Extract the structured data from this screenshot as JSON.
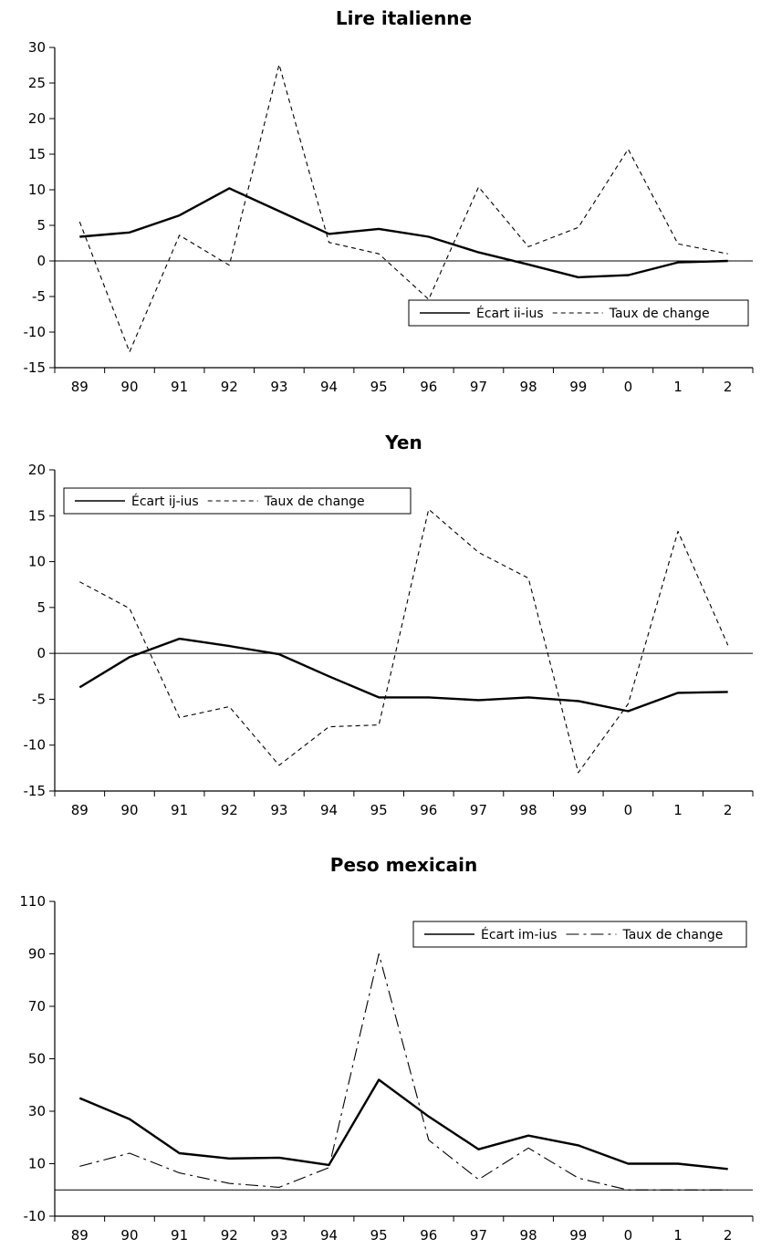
{
  "chart_data": [
    {
      "type": "line",
      "title": "Lire italienne",
      "categories": [
        "89",
        "90",
        "91",
        "92",
        "93",
        "94",
        "95",
        "96",
        "97",
        "98",
        "99",
        "0",
        "1",
        "2"
      ],
      "ylim": [
        -15,
        30
      ],
      "yticks": [
        -15,
        -10,
        -5,
        0,
        5,
        10,
        15,
        20,
        25,
        30
      ],
      "grid": false,
      "legend_position": "bottom-right",
      "series": [
        {
          "name": "Écart ii-ius",
          "style": "solid",
          "values": [
            3.4,
            4.0,
            6.4,
            10.2,
            7.0,
            3.8,
            4.5,
            3.4,
            1.2,
            -0.5,
            -2.3,
            -2.0,
            -0.2,
            0.0
          ]
        },
        {
          "name": "Taux de change",
          "style": "dashed",
          "values": [
            5.5,
            -12.8,
            3.6,
            -0.6,
            27.6,
            2.6,
            1.0,
            -5.4,
            10.4,
            2.0,
            4.7,
            15.7,
            2.4,
            1.0
          ]
        }
      ]
    },
    {
      "type": "line",
      "title": "Yen",
      "categories": [
        "89",
        "90",
        "91",
        "92",
        "93",
        "94",
        "95",
        "96",
        "97",
        "98",
        "99",
        "0",
        "1",
        "2"
      ],
      "ylim": [
        -15,
        20
      ],
      "yticks": [
        -15,
        -10,
        -5,
        0,
        5,
        10,
        15,
        20
      ],
      "grid": false,
      "legend_position": "top-left",
      "series": [
        {
          "name": "Écart ij-ius",
          "style": "solid",
          "values": [
            -3.7,
            -0.4,
            1.6,
            0.8,
            -0.1,
            -2.5,
            -4.8,
            -4.8,
            -5.1,
            -4.8,
            -5.2,
            -6.3,
            -4.3,
            -4.2
          ]
        },
        {
          "name": "Taux de change",
          "style": "dashed",
          "values": [
            7.8,
            4.9,
            -7.0,
            -5.8,
            -12.2,
            -8.0,
            -7.8,
            15.7,
            11.0,
            8.2,
            -13.0,
            -5.5,
            13.3,
            0.9
          ]
        }
      ]
    },
    {
      "type": "line",
      "title": "Peso mexicain",
      "categories": [
        "89",
        "90",
        "91",
        "92",
        "93",
        "94",
        "95",
        "96",
        "97",
        "98",
        "99",
        "0",
        "1",
        "2"
      ],
      "ylim": [
        -10,
        110
      ],
      "yticks": [
        -10,
        10,
        30,
        50,
        70,
        90,
        110
      ],
      "baseline": 0,
      "grid": false,
      "legend_position": "top-right",
      "series": [
        {
          "name": "Écart im-ius",
          "style": "solid",
          "values": [
            35,
            27,
            14,
            12,
            12.3,
            9.5,
            42,
            28,
            15.5,
            20.7,
            17,
            10,
            10,
            8
          ]
        },
        {
          "name": "Taux de change",
          "style": "dashdot",
          "values": [
            9,
            14,
            6.5,
            2.5,
            1,
            8.5,
            90,
            19,
            4,
            16,
            4.5,
            0,
            0,
            0
          ]
        }
      ]
    }
  ]
}
